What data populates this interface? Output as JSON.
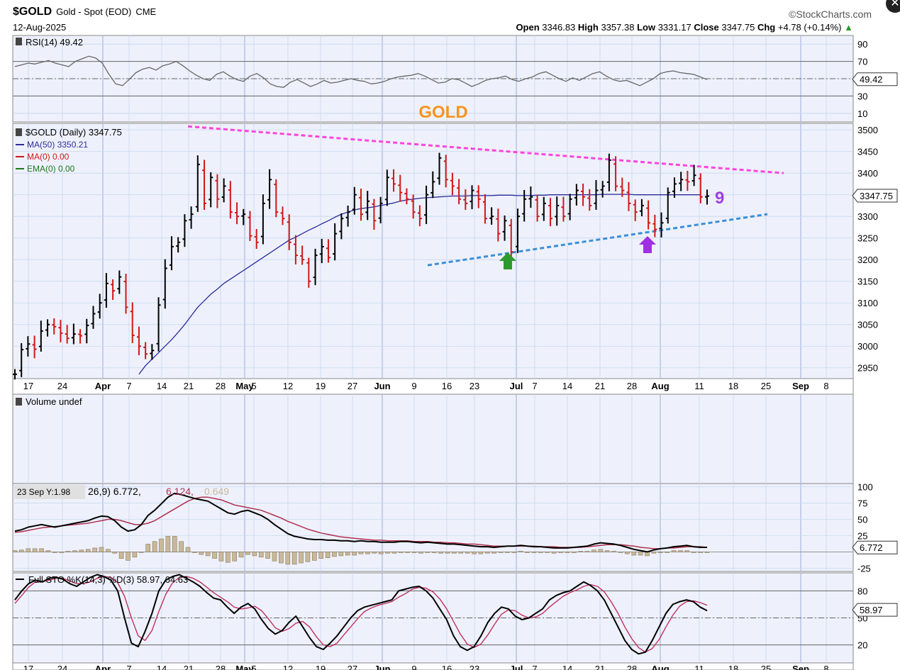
{
  "header": {
    "symbol": "$GOLD",
    "name": "Gold - Spot (EOD)",
    "exchange": "CME",
    "date": "12-Aug-2025",
    "brand": "©StockCharts.com",
    "ohlc": {
      "open_label": "Open",
      "open": "3346.83",
      "high_label": "High",
      "high": "3357.38",
      "low_label": "Low",
      "low": "3331.17",
      "close_label": "Close",
      "close": "3347.75",
      "chg_label": "Chg",
      "chg": "+4.78 (+0.14%)"
    }
  },
  "x_axis": {
    "labels": [
      "17",
      "24",
      "Apr",
      "7",
      "14",
      "21",
      "28",
      "May",
      "5",
      "12",
      "19",
      "27",
      "Jun",
      "9",
      "16",
      "23",
      "Jul",
      "7",
      "14",
      "21",
      "28",
      "Aug",
      "11",
      "18",
      "25",
      "Sep",
      "8"
    ],
    "bold": [
      "Apr",
      "May",
      "Jun",
      "Jul",
      "Aug",
      "Sep"
    ]
  },
  "chart_data": [
    {
      "type": "line",
      "panel": "rsi",
      "legend": "RSI(14) 49.42",
      "ylim": [
        0,
        100
      ],
      "yticks": [
        10,
        30,
        50,
        70,
        90
      ],
      "levels": [
        30,
        70
      ],
      "last_value_label": "49.42",
      "values": [
        64,
        66,
        68,
        67,
        69,
        71,
        68,
        66,
        64,
        70,
        73,
        76,
        74,
        68,
        55,
        44,
        42,
        49,
        57,
        61,
        63,
        60,
        65,
        67,
        70,
        65,
        59,
        54,
        50,
        48,
        55,
        58,
        53,
        49,
        47,
        53,
        56,
        51,
        44,
        41,
        40,
        46,
        49,
        45,
        41,
        44,
        48,
        45,
        46,
        48,
        50,
        48,
        47,
        44,
        45,
        47,
        50,
        52,
        53,
        54,
        56,
        53,
        49,
        45,
        46,
        50,
        49,
        45,
        41,
        44,
        48,
        50,
        51,
        53,
        49,
        47,
        50,
        52,
        56,
        58,
        54,
        50,
        47,
        51,
        48,
        52,
        56,
        58,
        53,
        49,
        47,
        48,
        45,
        42,
        46,
        50,
        56,
        58,
        59,
        57,
        56,
        55,
        52,
        49
      ]
    },
    {
      "type": "bar",
      "panel": "price",
      "title": "GOLD",
      "legend": [
        "$GOLD (Daily) 3347.75",
        "MA(50) 3350.21",
        "MA(0) 0.00",
        "EMA(0) 0.00"
      ],
      "ylim": [
        2925,
        3515
      ],
      "yticks": [
        2950,
        3000,
        3050,
        3100,
        3150,
        3200,
        3250,
        3300,
        3350,
        3400,
        3450,
        3500
      ],
      "last_value_label": "3347.75",
      "annotation_text": "9",
      "close": [
        2935,
        2992,
        3005,
        2993,
        3035,
        3050,
        3045,
        3030,
        3018,
        3028,
        3024,
        3048,
        3075,
        3100,
        3145,
        3128,
        3160,
        3090,
        3025,
        3000,
        2982,
        2990,
        3095,
        3180,
        3230,
        3240,
        3290,
        3305,
        3420,
        3330,
        3390,
        3340,
        3370,
        3310,
        3300,
        3305,
        3255,
        3240,
        3330,
        3385,
        3310,
        3295,
        3240,
        3210,
        3200,
        3150,
        3210,
        3230,
        3205,
        3260,
        3295,
        3310,
        3350,
        3305,
        3335,
        3290,
        3330,
        3390,
        3375,
        3355,
        3340,
        3310,
        3295,
        3350,
        3380,
        3435,
        3385,
        3370,
        3340,
        3330,
        3360,
        3340,
        3295,
        3300,
        3260,
        3290,
        3218,
        3300,
        3340,
        3345,
        3300,
        3330,
        3295,
        3325,
        3300,
        3340,
        3360,
        3345,
        3325,
        3360,
        3370,
        3430,
        3370,
        3360,
        3330,
        3310,
        3325,
        3285,
        3270,
        3285,
        3355,
        3375,
        3385,
        3380,
        3395,
        3345,
        3347
      ],
      "ma50": [
        null,
        null,
        null,
        null,
        null,
        null,
        null,
        null,
        null,
        null,
        null,
        null,
        null,
        null,
        null,
        null,
        null,
        null,
        null,
        2935,
        2955,
        2970,
        2985,
        3000,
        3015,
        3032,
        3050,
        3070,
        3090,
        3105,
        3120,
        3132,
        3145,
        3155,
        3165,
        3175,
        3185,
        3195,
        3205,
        3215,
        3225,
        3235,
        3245,
        3252,
        3260,
        3268,
        3275,
        3283,
        3290,
        3298,
        3305,
        3310,
        3315,
        3318,
        3320,
        3322,
        3325,
        3328,
        3331,
        3335,
        3338,
        3340,
        3342,
        3343,
        3344,
        3345,
        3346,
        3347,
        3347,
        3347,
        3348,
        3348,
        3348,
        3348,
        3349,
        3349,
        3349,
        3348,
        3348,
        3348,
        3349,
        3349,
        3350,
        3350,
        3350,
        3350,
        3350,
        3350,
        3350,
        3350,
        3351,
        3351,
        3351,
        3351,
        3351,
        3350,
        3350,
        3350,
        3350,
        3350,
        3350,
        3350,
        3350,
        3350,
        3350,
        3350
      ],
      "trendlines": [
        {
          "name": "upper-resistance",
          "color": "#ff44dd",
          "from": [
            0,
            3510
          ],
          "to": [
            1,
            3400
          ]
        },
        {
          "name": "lower-support",
          "color": "#3a8fd8",
          "from": [
            0,
            3185
          ],
          "to": [
            1,
            3305
          ]
        }
      ],
      "markers": [
        {
          "name": "green-up-arrow",
          "color": "#2e9a2e"
        },
        {
          "name": "purple-up-arrow",
          "color": "#a030e0"
        }
      ]
    },
    {
      "type": "bar",
      "panel": "volume",
      "legend": "Volume undef",
      "values": []
    },
    {
      "type": "line",
      "panel": "macd",
      "legend_prefix": "23 Sep Y:1.98",
      "legend_values": [
        "26,9) 6.772,",
        "6.124,",
        "0.649"
      ],
      "ylim": [
        -30,
        105
      ],
      "yticks": [
        -25,
        25,
        50,
        75,
        100
      ],
      "last_value_label": "6.772",
      "macd": [
        32,
        34,
        38,
        40,
        42,
        40,
        38,
        40,
        42,
        44,
        46,
        48,
        52,
        55,
        54,
        48,
        38,
        32,
        34,
        42,
        56,
        64,
        74,
        84,
        95,
        104,
        null,
        null,
        null,
        null,
        null,
        null,
        null,
        null,
        null,
        null,
        null,
        null,
        null,
        null,
        null,
        null,
        null,
        null,
        null,
        null,
        null,
        null,
        null,
        null,
        null,
        null,
        null,
        null,
        null,
        null,
        null,
        null,
        null,
        null,
        null,
        null,
        null,
        null,
        null,
        null,
        null,
        null,
        null,
        null,
        null,
        null,
        null,
        null,
        null,
        null,
        null,
        null,
        null,
        null,
        null,
        null,
        null,
        null,
        null,
        null,
        null,
        null,
        null,
        null,
        null,
        null,
        null,
        null,
        null,
        null,
        null,
        null,
        null,
        null,
        null,
        null,
        null,
        null,
        null,
        null,
        null
      ],
      "macd_visible": [
        32,
        34,
        38,
        40,
        42,
        40,
        38,
        40,
        42,
        44,
        46,
        48,
        52,
        55,
        54,
        48,
        38,
        32,
        34,
        42,
        56,
        64,
        74,
        84,
        90,
        88,
        85,
        82,
        80,
        78,
        72,
        66,
        60,
        58,
        62,
        64,
        60,
        56,
        50,
        42,
        35,
        28,
        24,
        22,
        20,
        19,
        19,
        18,
        18,
        17,
        17,
        16,
        17,
        16,
        16,
        15,
        15,
        15,
        16,
        16,
        15,
        14,
        15,
        14,
        13,
        12,
        12,
        11,
        10,
        9,
        8,
        8,
        7,
        8,
        9,
        9,
        10,
        9,
        8,
        8,
        7,
        6,
        6,
        6,
        7,
        8,
        9,
        12,
        14,
        13,
        12,
        10,
        7,
        4,
        2,
        0,
        3,
        5,
        6,
        8,
        9,
        10,
        8,
        7,
        7
      ],
      "signal": [
        30,
        31,
        33,
        35,
        37,
        38,
        39,
        40,
        41,
        42,
        43,
        44,
        46,
        48,
        50,
        50,
        48,
        45,
        42,
        42,
        44,
        48,
        54,
        60,
        66,
        72,
        78,
        82,
        84,
        84,
        82,
        80,
        76,
        72,
        70,
        68,
        66,
        64,
        60,
        56,
        52,
        47,
        43,
        39,
        35,
        32,
        29,
        27,
        25,
        23,
        22,
        21,
        20,
        19,
        18,
        18,
        17,
        17,
        17,
        17,
        16,
        16,
        16,
        15,
        15,
        14,
        14,
        13,
        12,
        12,
        11,
        10,
        9,
        9,
        9,
        9,
        9,
        9,
        9,
        8,
        8,
        8,
        7,
        7,
        7,
        7,
        8,
        9,
        10,
        11,
        11,
        11,
        10,
        9,
        7,
        6,
        5,
        5,
        6,
        6,
        7,
        8,
        8,
        8,
        7
      ],
      "histogram": [
        2,
        3,
        5,
        5,
        5,
        2,
        -1,
        0,
        1,
        2,
        3,
        4,
        6,
        7,
        4,
        -2,
        -10,
        -13,
        -8,
        0,
        12,
        16,
        20,
        24,
        24,
        16,
        7,
        0,
        -4,
        -6,
        -10,
        -14,
        -16,
        -14,
        -8,
        -4,
        -6,
        -8,
        -10,
        -14,
        -17,
        -19,
        -19,
        -17,
        -15,
        -13,
        -10,
        -9,
        -7,
        -6,
        -5,
        -5,
        -3,
        -3,
        -2,
        -3,
        -2,
        -2,
        -1,
        -1,
        -1,
        -2,
        -1,
        -1,
        -2,
        -2,
        -2,
        -2,
        -2,
        -3,
        -3,
        -2,
        -2,
        -1,
        0,
        0,
        1,
        0,
        -1,
        0,
        -1,
        -2,
        -1,
        -1,
        0,
        1,
        1,
        3,
        4,
        2,
        1,
        -1,
        -3,
        -5,
        -5,
        -6,
        -2,
        0,
        0,
        2,
        2,
        2,
        0,
        -1,
        0
      ]
    },
    {
      "type": "line",
      "panel": "stochastic",
      "legend": "Full STO %K(14,3) %D(3) 58.97, 64.63",
      "ylim": [
        0,
        100
      ],
      "yticks": [
        20,
        50,
        80
      ],
      "levels": [
        20,
        80
      ],
      "last_value_label": "58.97",
      "k": [
        70,
        80,
        88,
        92,
        90,
        94,
        95,
        93,
        88,
        85,
        90,
        95,
        98,
        96,
        92,
        80,
        50,
        22,
        18,
        35,
        55,
        80,
        92,
        96,
        98,
        94,
        90,
        85,
        78,
        72,
        70,
        62,
        55,
        62,
        66,
        60,
        48,
        38,
        32,
        36,
        45,
        52,
        40,
        28,
        18,
        15,
        22,
        30,
        40,
        50,
        58,
        62,
        64,
        66,
        68,
        70,
        80,
        82,
        84,
        85,
        80,
        72,
        60,
        48,
        30,
        18,
        14,
        18,
        30,
        45,
        55,
        62,
        60,
        52,
        48,
        50,
        55,
        60,
        70,
        75,
        78,
        80,
        85,
        90,
        86,
        80,
        70,
        55,
        40,
        25,
        15,
        10,
        12,
        25,
        40,
        55,
        65,
        68,
        70,
        68,
        62,
        58
      ],
      "d": [
        66,
        75,
        84,
        90,
        90,
        92,
        94,
        94,
        91,
        88,
        88,
        90,
        94,
        96,
        95,
        89,
        74,
        50,
        30,
        25,
        36,
        57,
        76,
        89,
        95,
        96,
        94,
        90,
        84,
        78,
        73,
        68,
        62,
        60,
        61,
        63,
        58,
        49,
        39,
        35,
        38,
        44,
        46,
        40,
        29,
        20,
        18,
        22,
        31,
        40,
        49,
        57,
        61,
        64,
        66,
        68,
        73,
        77,
        82,
        84,
        83,
        79,
        71,
        60,
        46,
        32,
        21,
        17,
        21,
        31,
        43,
        54,
        59,
        58,
        53,
        50,
        51,
        55,
        62,
        68,
        74,
        78,
        81,
        85,
        87,
        85,
        79,
        68,
        55,
        40,
        27,
        17,
        12,
        16,
        26,
        40,
        53,
        63,
        68,
        69,
        67,
        64
      ]
    }
  ]
}
